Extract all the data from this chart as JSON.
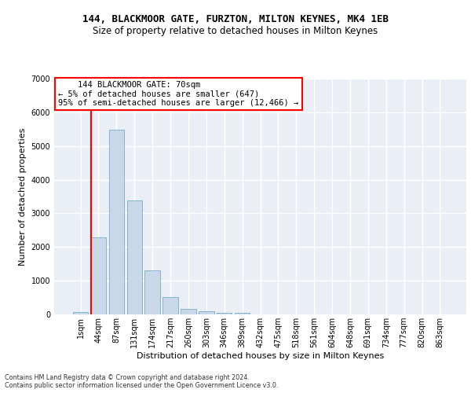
{
  "title1": "144, BLACKMOOR GATE, FURZTON, MILTON KEYNES, MK4 1EB",
  "title2": "Size of property relative to detached houses in Milton Keynes",
  "xlabel": "Distribution of detached houses by size in Milton Keynes",
  "ylabel": "Number of detached properties",
  "footer": "Contains HM Land Registry data © Crown copyright and database right 2024.\nContains public sector information licensed under the Open Government Licence v3.0.",
  "bar_labels": [
    "1sqm",
    "44sqm",
    "87sqm",
    "131sqm",
    "174sqm",
    "217sqm",
    "260sqm",
    "303sqm",
    "346sqm",
    "389sqm",
    "432sqm",
    "475sqm",
    "518sqm",
    "561sqm",
    "604sqm",
    "648sqm",
    "691sqm",
    "734sqm",
    "777sqm",
    "820sqm",
    "863sqm"
  ],
  "bar_values": [
    70,
    2280,
    5480,
    3380,
    1310,
    510,
    175,
    90,
    55,
    45,
    0,
    0,
    0,
    0,
    0,
    0,
    0,
    0,
    0,
    0,
    0
  ],
  "bar_color": "#c8d8e8",
  "bar_edgecolor": "#7aaac8",
  "vline_color": "red",
  "vline_x": 0.6,
  "annotation_line1": "    144 BLACKMOOR GATE: 70sqm    ",
  "annotation_line2": "← 5% of detached houses are smaller (647)",
  "annotation_line3": "95% of semi-detached houses are larger (12,466) →",
  "annotation_box_color": "white",
  "annotation_border_color": "red",
  "ylim": [
    0,
    7000
  ],
  "yticks": [
    0,
    1000,
    2000,
    3000,
    4000,
    5000,
    6000,
    7000
  ],
  "background_color": "#eaeff5",
  "grid_color": "white",
  "title1_fontsize": 9,
  "title2_fontsize": 8.5,
  "ylabel_fontsize": 8,
  "xlabel_fontsize": 8,
  "tick_fontsize": 7,
  "annotation_fontsize": 7.5,
  "footer_fontsize": 5.8
}
